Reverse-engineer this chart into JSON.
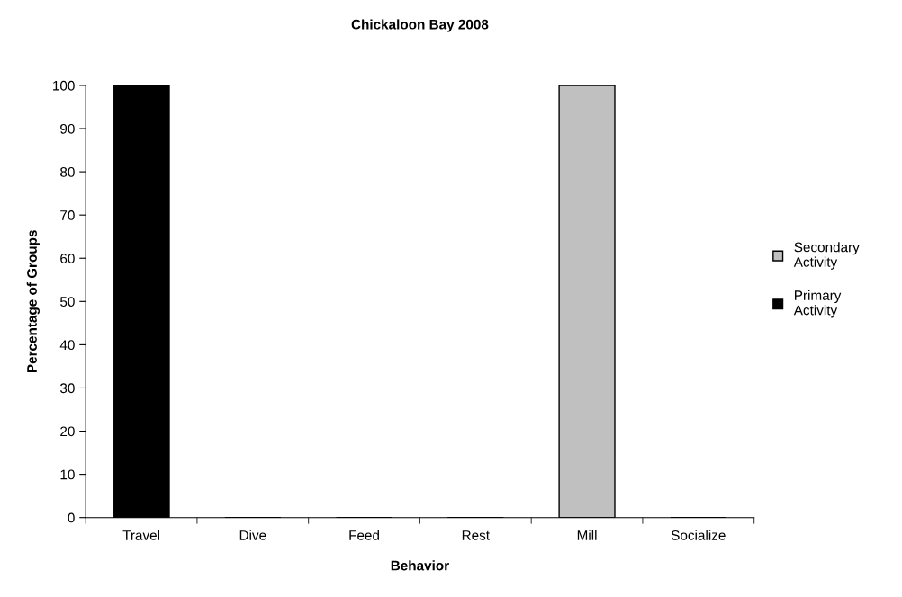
{
  "chart_data": {
    "type": "bar",
    "title": "Chickaloon Bay 2008",
    "xlabel": "Behavior",
    "ylabel": "Percentage of Groups",
    "categories": [
      "Travel",
      "Dive",
      "Feed",
      "Rest",
      "Mill",
      "Socialize"
    ],
    "series": [
      {
        "name": "Primary Activity",
        "color": "#000000",
        "values": [
          100,
          0,
          0,
          0,
          null,
          0
        ]
      },
      {
        "name": "Secondary Activity",
        "color": "#c0c0c0",
        "values": [
          null,
          0,
          0,
          0,
          100,
          0
        ]
      }
    ],
    "ylim": [
      0,
      100
    ],
    "yticks": [
      0,
      10,
      20,
      30,
      40,
      50,
      60,
      70,
      80,
      90,
      100
    ],
    "grid": false,
    "legend": "right"
  }
}
